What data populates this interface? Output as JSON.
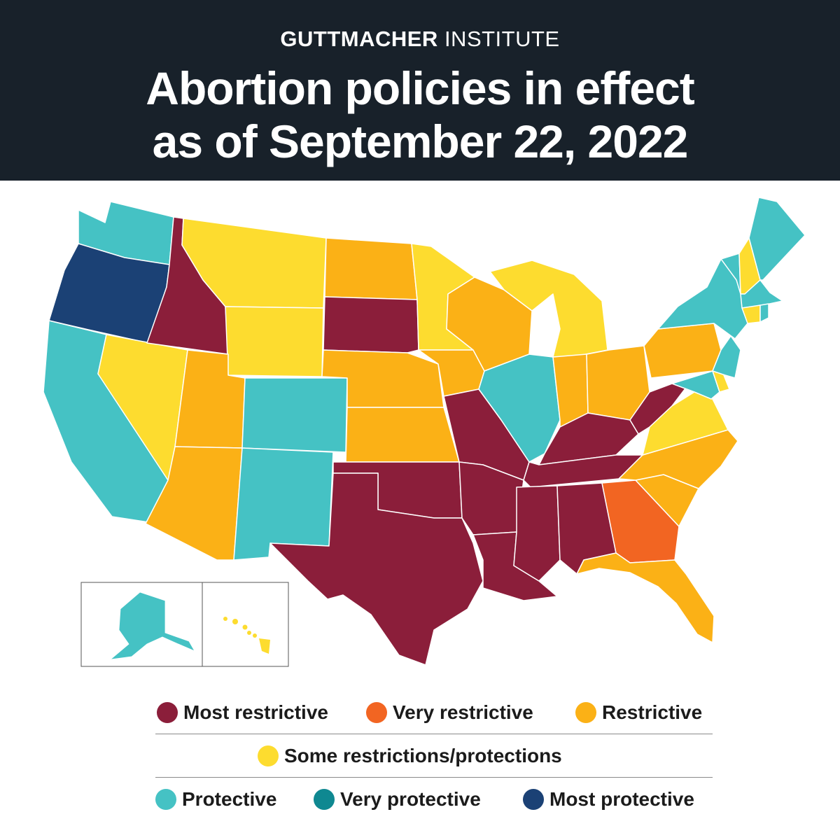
{
  "header": {
    "brand_bold": "GUTTMACHER",
    "brand_light": "INSTITUTE",
    "title_line1": "Abortion policies in effect",
    "title_line2": "as of September 22, 2022"
  },
  "colors": {
    "most_restrictive": "#8b1e3a",
    "very_restrictive": "#f26522",
    "restrictive": "#fbb116",
    "some": "#fddc2f",
    "protective": "#45c2c4",
    "very_protective": "#0f8891",
    "most_protective": "#1b4175",
    "header_bg": "#18212a"
  },
  "legend": {
    "most_restrictive": "Most restrictive",
    "very_restrictive": "Very restrictive",
    "restrictive": "Restrictive",
    "some": "Some restrictions/protections",
    "protective": "Protective",
    "very_protective": "Very protective",
    "most_protective": "Most protective"
  },
  "states": [
    {
      "name": "Washington",
      "category": "protective"
    },
    {
      "name": "Oregon",
      "category": "most_protective"
    },
    {
      "name": "California",
      "category": "protective"
    },
    {
      "name": "Nevada",
      "category": "some"
    },
    {
      "name": "Idaho",
      "category": "most_restrictive"
    },
    {
      "name": "Montana",
      "category": "some"
    },
    {
      "name": "Wyoming",
      "category": "some"
    },
    {
      "name": "Utah",
      "category": "restrictive"
    },
    {
      "name": "Arizona",
      "category": "restrictive"
    },
    {
      "name": "Colorado",
      "category": "protective"
    },
    {
      "name": "New Mexico",
      "category": "protective"
    },
    {
      "name": "North Dakota",
      "category": "restrictive"
    },
    {
      "name": "South Dakota",
      "category": "most_restrictive"
    },
    {
      "name": "Nebraska",
      "category": "restrictive"
    },
    {
      "name": "Kansas",
      "category": "restrictive"
    },
    {
      "name": "Oklahoma",
      "category": "most_restrictive"
    },
    {
      "name": "Texas",
      "category": "most_restrictive"
    },
    {
      "name": "Minnesota",
      "category": "some"
    },
    {
      "name": "Iowa",
      "category": "restrictive"
    },
    {
      "name": "Missouri",
      "category": "most_restrictive"
    },
    {
      "name": "Arkansas",
      "category": "most_restrictive"
    },
    {
      "name": "Louisiana",
      "category": "most_restrictive"
    },
    {
      "name": "Wisconsin",
      "category": "restrictive"
    },
    {
      "name": "Illinois",
      "category": "protective"
    },
    {
      "name": "Michigan",
      "category": "some"
    },
    {
      "name": "Indiana",
      "category": "restrictive"
    },
    {
      "name": "Ohio",
      "category": "restrictive"
    },
    {
      "name": "Kentucky",
      "category": "most_restrictive"
    },
    {
      "name": "Tennessee",
      "category": "most_restrictive"
    },
    {
      "name": "Mississippi",
      "category": "most_restrictive"
    },
    {
      "name": "Alabama",
      "category": "most_restrictive"
    },
    {
      "name": "Georgia",
      "category": "very_restrictive"
    },
    {
      "name": "Florida",
      "category": "restrictive"
    },
    {
      "name": "South Carolina",
      "category": "restrictive"
    },
    {
      "name": "North Carolina",
      "category": "restrictive"
    },
    {
      "name": "Virginia",
      "category": "some"
    },
    {
      "name": "West Virginia",
      "category": "most_restrictive"
    },
    {
      "name": "Pennsylvania",
      "category": "restrictive"
    },
    {
      "name": "New York",
      "category": "protective"
    },
    {
      "name": "Vermont",
      "category": "protective"
    },
    {
      "name": "New Hampshire",
      "category": "some"
    },
    {
      "name": "Maine",
      "category": "protective"
    },
    {
      "name": "Massachusetts",
      "category": "protective"
    },
    {
      "name": "Connecticut",
      "category": "some"
    },
    {
      "name": "Rhode Island",
      "category": "protective"
    },
    {
      "name": "New Jersey",
      "category": "protective"
    },
    {
      "name": "Delaware",
      "category": "some"
    },
    {
      "name": "Maryland",
      "category": "protective"
    },
    {
      "name": "Alaska",
      "category": "protective"
    },
    {
      "name": "Hawaii",
      "category": "some"
    }
  ]
}
